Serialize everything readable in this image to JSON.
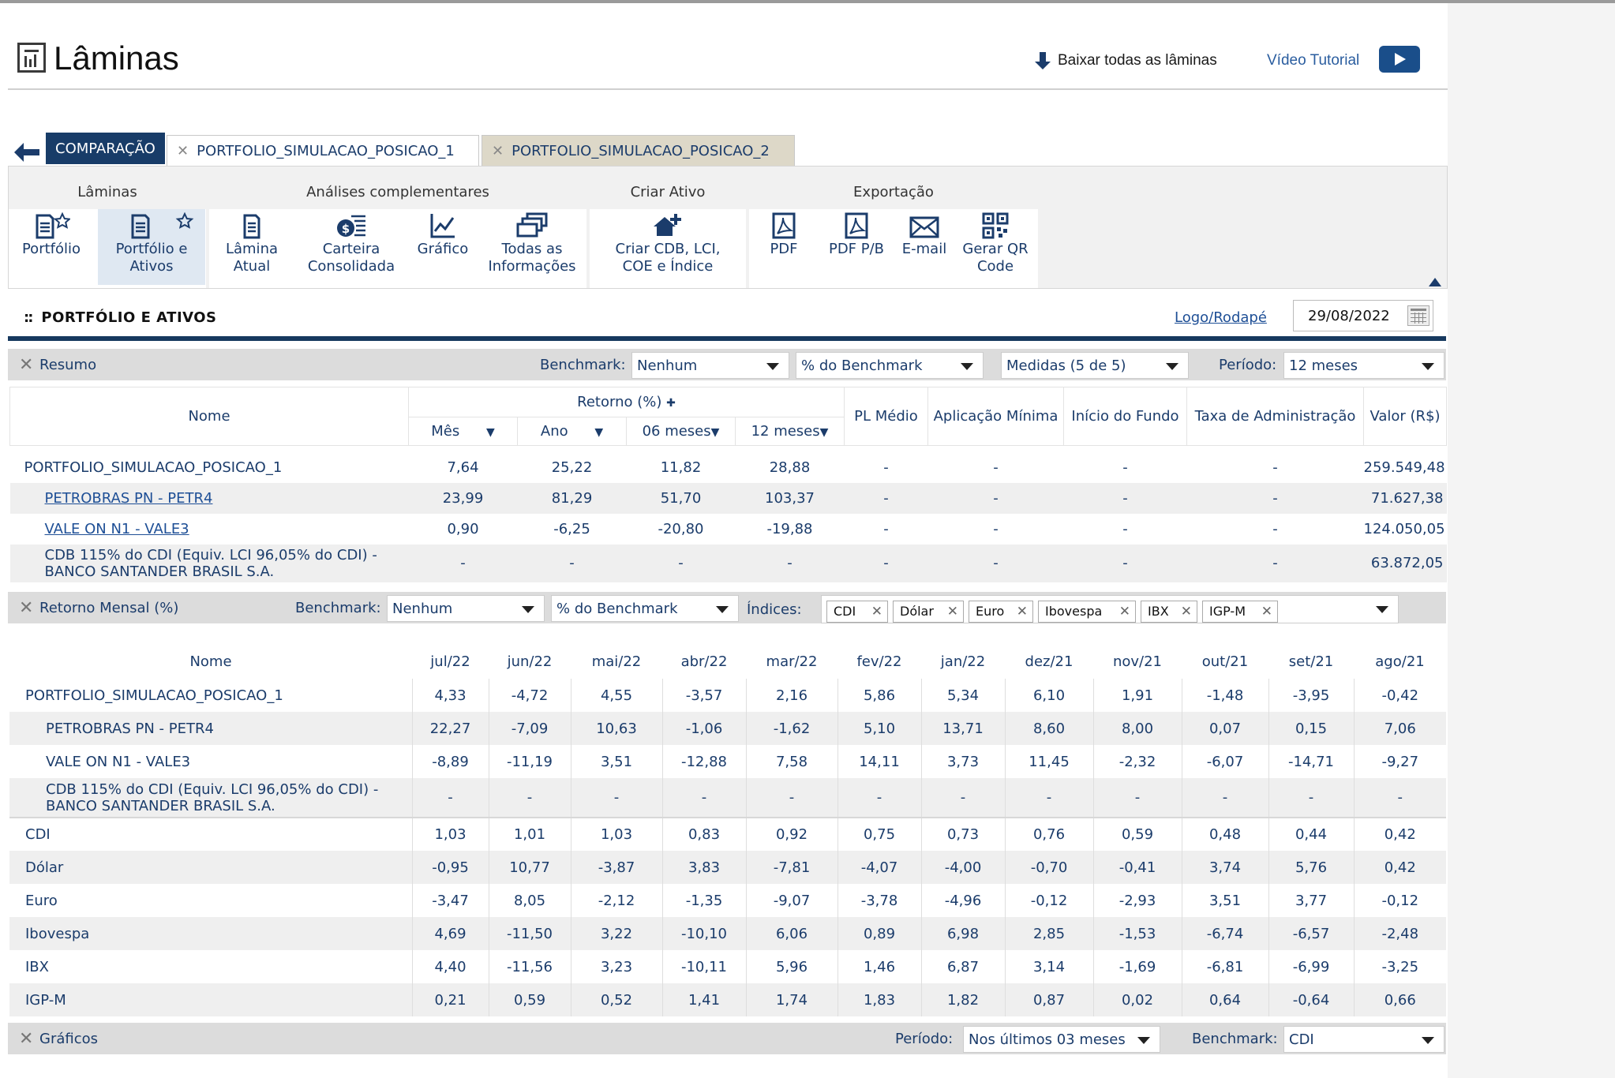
{
  "header": {
    "title": "Lâminas",
    "download_all": "Baixar todas as lâminas",
    "video_tutorial": "Vídeo Tutorial"
  },
  "tabs": [
    {
      "label": "COMPARAÇÃO"
    },
    {
      "label": "PORTFOLIO_SIMULACAO_POSICAO_1"
    },
    {
      "label": "PORTFOLIO_SIMULACAO_POSICAO_2"
    }
  ],
  "toolbar": {
    "groups": [
      {
        "title": "Lâminas"
      },
      {
        "title": "Análises complementares"
      },
      {
        "title": "Criar Ativo"
      },
      {
        "title": "Exportação"
      }
    ],
    "buttons": {
      "portfolio": "Portfólio",
      "portfolio_ativos_1": "Portfólio e",
      "portfolio_ativos_2": "Ativos",
      "lamina_1": "Lâmina",
      "lamina_2": "Atual",
      "carteira_1": "Carteira",
      "carteira_2": "Consolidada",
      "grafico": "Gráfico",
      "todas_1": "Todas as",
      "todas_2": "Informações",
      "criar_1": "Criar CDB, LCI,",
      "criar_2": "COE e Índice",
      "pdf": "PDF",
      "pdf_pb": "PDF P/B",
      "email": "E-mail",
      "qr_1": "Gerar QR",
      "qr_2": "Code"
    }
  },
  "section": {
    "title": "PORTFÓLIO E ATIVOS",
    "logo_link": "Logo/Rodapé",
    "date": "29/08/2022"
  },
  "resumo": {
    "title": "Resumo",
    "benchmark_label": "Benchmark:",
    "benchmark_value": "Nenhum",
    "pct_benchmark": "% do Benchmark",
    "medidas": "Medidas (5 de 5)",
    "periodo_label": "Período:",
    "periodo_value": "12 meses",
    "headers": {
      "nome": "Nome",
      "retorno": "Retorno (%)",
      "mes": "Mês",
      "ano": "Ano",
      "m06": "06 meses",
      "m12": "12 meses",
      "pl": "PL Médio",
      "aplic": "Aplicação Mínima",
      "inicio": "Início do Fundo",
      "taxa": "Taxa de Administração",
      "valor": "Valor (R$)"
    },
    "rows": [
      {
        "nome": "PORTFOLIO_SIMULACAO_POSICAO_1",
        "mes": "7,64",
        "ano": "25,22",
        "m06": "11,82",
        "m12": "28,88",
        "pl": "-",
        "aplic": "-",
        "inicio": "-",
        "taxa": "-",
        "valor": "259.549,48"
      },
      {
        "nome": "PETROBRAS PN - PETR4",
        "mes": "23,99",
        "ano": "81,29",
        "m06": "51,70",
        "m12": "103,37",
        "pl": "-",
        "aplic": "-",
        "inicio": "-",
        "taxa": "-",
        "valor": "71.627,38"
      },
      {
        "nome": "VALE ON N1 - VALE3",
        "mes": "0,90",
        "ano": "-6,25",
        "m06": "-20,80",
        "m12": "-19,88",
        "pl": "-",
        "aplic": "-",
        "inicio": "-",
        "taxa": "-",
        "valor": "124.050,05"
      },
      {
        "nome1": "CDB 115% do CDI (Equiv. LCI 96,05% do CDI) -",
        "nome2": "BANCO SANTANDER BRASIL S.A.",
        "mes": "-",
        "ano": "-",
        "m06": "-",
        "m12": "-",
        "pl": "-",
        "aplic": "-",
        "inicio": "-",
        "taxa": "-",
        "valor": "63.872,05"
      }
    ]
  },
  "mensal": {
    "title": "Retorno Mensal (%)",
    "benchmark_label": "Benchmark:",
    "benchmark_value": "Nenhum",
    "pct_benchmark": "% do Benchmark",
    "indices_label": "Índices:",
    "indices": [
      "CDI",
      "Dólar",
      "Euro",
      "Ibovespa",
      "IBX",
      "IGP-M"
    ],
    "months": [
      "jul/22",
      "jun/22",
      "mai/22",
      "abr/22",
      "mar/22",
      "fev/22",
      "jan/22",
      "dez/21",
      "nov/21",
      "out/21",
      "set/21",
      "ago/21"
    ],
    "nome_header": "Nome",
    "rows": [
      {
        "nome": "PORTFOLIO_SIMULACAO_POSICAO_1",
        "v": [
          "4,33",
          "-4,72",
          "4,55",
          "-3,57",
          "2,16",
          "5,86",
          "5,34",
          "6,10",
          "1,91",
          "-1,48",
          "-3,95",
          "-0,42"
        ]
      },
      {
        "nome": "PETROBRAS PN - PETR4",
        "v": [
          "22,27",
          "-7,09",
          "10,63",
          "-1,06",
          "-1,62",
          "5,10",
          "13,71",
          "8,60",
          "8,00",
          "0,07",
          "0,15",
          "7,06"
        ]
      },
      {
        "nome": "VALE ON N1 - VALE3",
        "v": [
          "-8,89",
          "-11,19",
          "3,51",
          "-12,88",
          "7,58",
          "14,11",
          "3,73",
          "11,45",
          "-2,32",
          "-6,07",
          "-14,71",
          "-9,27"
        ]
      },
      {
        "nome1": "CDB 115% do CDI (Equiv. LCI 96,05% do CDI) -",
        "nome2": "BANCO SANTANDER BRASIL S.A.",
        "v": [
          "-",
          "-",
          "-",
          "-",
          "-",
          "-",
          "-",
          "-",
          "-",
          "-",
          "-",
          "-"
        ]
      },
      {
        "nome": "CDI",
        "v": [
          "1,03",
          "1,01",
          "1,03",
          "0,83",
          "0,92",
          "0,75",
          "0,73",
          "0,76",
          "0,59",
          "0,48",
          "0,44",
          "0,42"
        ]
      },
      {
        "nome": "Dólar",
        "v": [
          "-0,95",
          "10,77",
          "-3,87",
          "3,83",
          "-7,81",
          "-4,07",
          "-4,00",
          "-0,70",
          "-0,41",
          "3,74",
          "5,76",
          "0,42"
        ]
      },
      {
        "nome": "Euro",
        "v": [
          "-3,47",
          "8,05",
          "-2,12",
          "-1,35",
          "-9,07",
          "-3,78",
          "-4,96",
          "-0,12",
          "-2,93",
          "3,51",
          "3,77",
          "-0,12"
        ]
      },
      {
        "nome": "Ibovespa",
        "v": [
          "4,69",
          "-11,50",
          "3,22",
          "-10,10",
          "6,06",
          "0,89",
          "6,98",
          "2,85",
          "-1,53",
          "-6,74",
          "-6,57",
          "-2,48"
        ]
      },
      {
        "nome": "IBX",
        "v": [
          "4,40",
          "-11,56",
          "3,23",
          "-10,11",
          "5,96",
          "1,46",
          "6,87",
          "3,14",
          "-1,69",
          "-6,81",
          "-6,99",
          "-3,25"
        ]
      },
      {
        "nome": "IGP-M",
        "v": [
          "0,21",
          "0,59",
          "0,52",
          "1,41",
          "1,74",
          "1,83",
          "1,82",
          "0,87",
          "0,02",
          "0,64",
          "-0,64",
          "0,66"
        ]
      }
    ]
  },
  "graficos": {
    "title": "Gráficos",
    "periodo_label": "Período:",
    "periodo_value": "Nos últimos 03 meses",
    "benchmark_label": "Benchmark:",
    "benchmark_value": "CDI"
  }
}
